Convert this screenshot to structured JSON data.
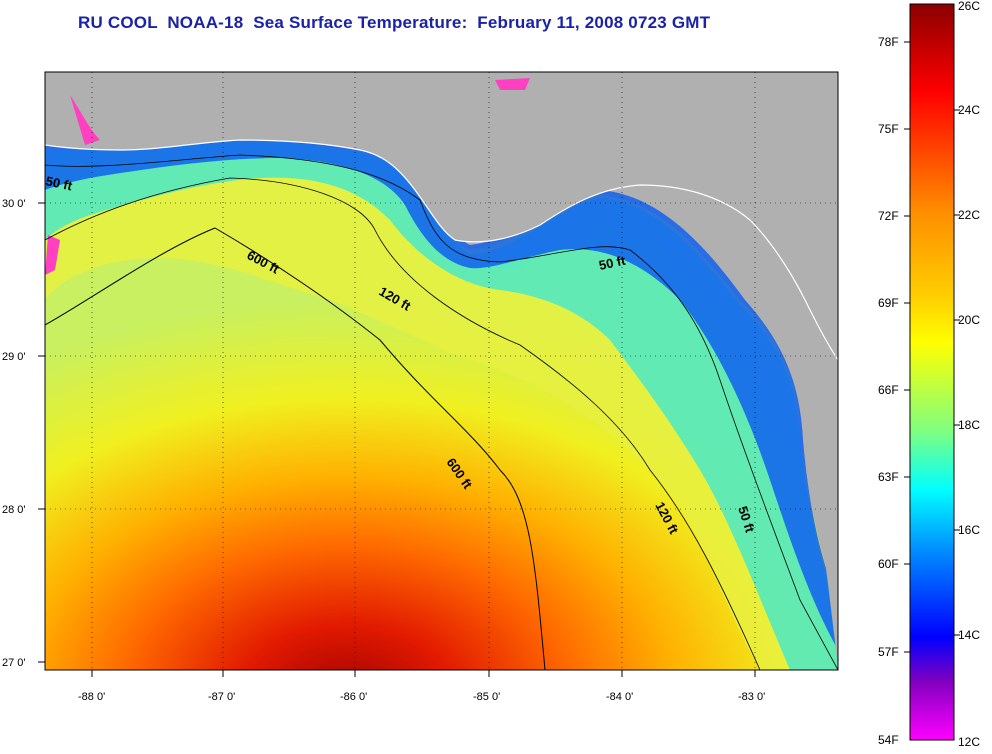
{
  "title": "RU COOL  NOAA-18  Sea Surface Temperature:  February 11, 2008 0723 GMT",
  "map": {
    "lon_labels": [
      "-88 0'",
      "-87 0'",
      "-86 0'",
      "-85 0'",
      "-84 0'",
      "-83 0'"
    ],
    "lat_labels": [
      "30 0'",
      "29 0'",
      "28 0'",
      "27 0'"
    ],
    "contour_labels": [
      "50 ft",
      "600 ft",
      "120 ft",
      "50 ft",
      "600 ft",
      "120 ft",
      "50 ft"
    ]
  },
  "colorbar": {
    "fahrenheit_labels": [
      "78F",
      "75F",
      "72F",
      "69F",
      "66F",
      "63F",
      "60F",
      "57F",
      "54F"
    ],
    "celsius_labels": [
      "26C",
      "24C",
      "22C",
      "20C",
      "18C",
      "16C",
      "14C",
      "12C"
    ],
    "colors": [
      "#8b0000",
      "#ff0000",
      "#ff8c00",
      "#ffd000",
      "#ffff00",
      "#7fff7f",
      "#00ffff",
      "#0080ff",
      "#0000ff",
      "#8000c0",
      "#ff00ff"
    ]
  }
}
